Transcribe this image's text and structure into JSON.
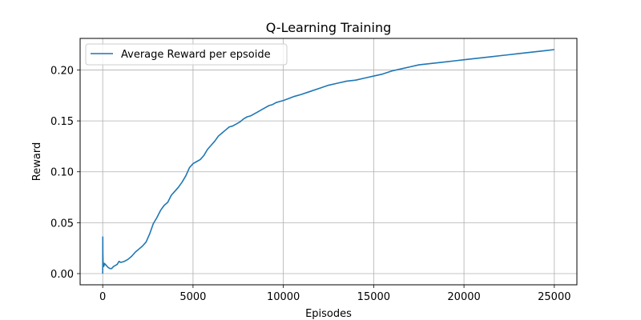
{
  "chart_data": {
    "type": "line",
    "title": "Q-Learning Training",
    "xlabel": "Episodes",
    "ylabel": "Reward",
    "xlim": [
      -1250,
      26250
    ],
    "ylim": [
      -0.011,
      0.231
    ],
    "x_ticks": [
      0,
      5000,
      10000,
      15000,
      20000,
      25000
    ],
    "x_tick_labels": [
      "0",
      "5000",
      "10000",
      "15000",
      "20000",
      "25000"
    ],
    "y_ticks": [
      0.0,
      0.05,
      0.1,
      0.15,
      0.2
    ],
    "y_tick_labels": [
      "0.00",
      "0.05",
      "0.10",
      "0.15",
      "0.20"
    ],
    "grid": true,
    "legend_position": "top-left",
    "series": [
      {
        "name": "Average Reward per epsoide",
        "color": "#1f77b4",
        "x": [
          1,
          5,
          10,
          20,
          40,
          60,
          100,
          150,
          200,
          300,
          400,
          500,
          600,
          700,
          800,
          900,
          1000,
          1200,
          1400,
          1600,
          1800,
          2000,
          2200,
          2400,
          2600,
          2800,
          3000,
          3200,
          3400,
          3600,
          3800,
          4000,
          4200,
          4400,
          4600,
          4800,
          5000,
          5200,
          5400,
          5600,
          5800,
          6000,
          6200,
          6400,
          6600,
          6800,
          7000,
          7200,
          7400,
          7600,
          7800,
          8000,
          8200,
          8400,
          8600,
          8800,
          9000,
          9200,
          9400,
          9600,
          9800,
          10000,
          10300,
          10600,
          11000,
          11500,
          12000,
          12500,
          13000,
          13500,
          14000,
          14500,
          15000,
          15500,
          16000,
          16500,
          17000,
          17500,
          18000,
          18500,
          19000,
          19500,
          20000,
          20500,
          21000,
          21500,
          22000,
          22500,
          23000,
          23500,
          24000,
          24500,
          25000
        ],
        "y": [
          0.0,
          0.036,
          0.02,
          0.012,
          0.009,
          0.007,
          0.01,
          0.009,
          0.008,
          0.006,
          0.005,
          0.005,
          0.007,
          0.008,
          0.009,
          0.012,
          0.011,
          0.012,
          0.014,
          0.017,
          0.021,
          0.024,
          0.027,
          0.031,
          0.039,
          0.049,
          0.055,
          0.062,
          0.067,
          0.07,
          0.077,
          0.081,
          0.085,
          0.09,
          0.096,
          0.104,
          0.108,
          0.11,
          0.112,
          0.116,
          0.122,
          0.126,
          0.13,
          0.135,
          0.138,
          0.141,
          0.144,
          0.145,
          0.147,
          0.149,
          0.152,
          0.154,
          0.155,
          0.157,
          0.159,
          0.161,
          0.163,
          0.165,
          0.166,
          0.168,
          0.169,
          0.17,
          0.172,
          0.174,
          0.176,
          0.179,
          0.182,
          0.185,
          0.187,
          0.189,
          0.19,
          0.192,
          0.194,
          0.196,
          0.199,
          0.201,
          0.203,
          0.205,
          0.206,
          0.207,
          0.208,
          0.209,
          0.21,
          0.211,
          0.212,
          0.213,
          0.214,
          0.215,
          0.216,
          0.217,
          0.218,
          0.219,
          0.22
        ]
      }
    ]
  }
}
